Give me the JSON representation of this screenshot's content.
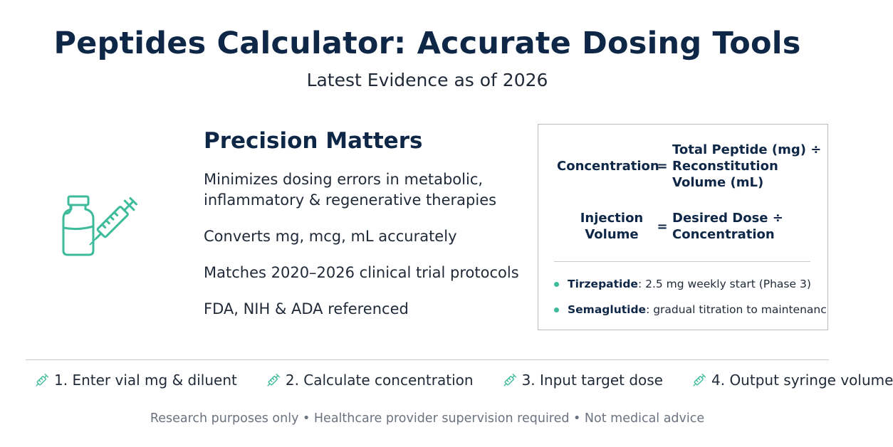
{
  "header": {
    "title": "Peptides Calculator: Accurate Dosing Tools",
    "subtitle": "Latest Evidence as of 2026"
  },
  "illustration": {
    "icon": "vial-syringe-icon",
    "accent_color": "#3dbb9b"
  },
  "precision": {
    "heading": "Precision Matters",
    "features": [
      "Minimizes dosing errors in metabolic, inflammatory & regenerative therapies",
      "Converts mg, mcg, mL accurately",
      "Matches 2020–2026 clinical trial protocols",
      "FDA, NIH & ADA referenced"
    ]
  },
  "formulas": {
    "concentration": {
      "lhs": "Concentration",
      "eq": "=",
      "rhs_line1": "Total Peptide (mg) ÷",
      "rhs_line2": "Reconstitution",
      "rhs_line3": "Volume (mL)"
    },
    "injection": {
      "lhs_line1": "Injection",
      "lhs_line2": "Volume",
      "eq": "=",
      "rhs_line1": "Desired Dose ÷",
      "rhs_line2": "Concentration"
    },
    "examples": [
      {
        "drug": "Tirzepatide",
        "detail": ": 2.5 mg weekly start (Phase 3)"
      },
      {
        "drug": "Semaglutide",
        "detail": ": gradual titration to maintenanc"
      }
    ]
  },
  "steps": [
    {
      "icon": "syringe-icon",
      "label": "1. Enter vial mg & diluent"
    },
    {
      "icon": "syringe-icon",
      "label": "2. Calculate concentration"
    },
    {
      "icon": "syringe-icon",
      "label": "3. Input target dose"
    },
    {
      "icon": "syringe-icon",
      "label": "4. Output syringe volume"
    }
  ],
  "footer": {
    "disclaimer": "Research purposes only • Healthcare provider supervision required • Not medical advice"
  },
  "colors": {
    "title": "#0f2747",
    "accent": "#3dbb9b",
    "muted_text": "#6b7280"
  }
}
